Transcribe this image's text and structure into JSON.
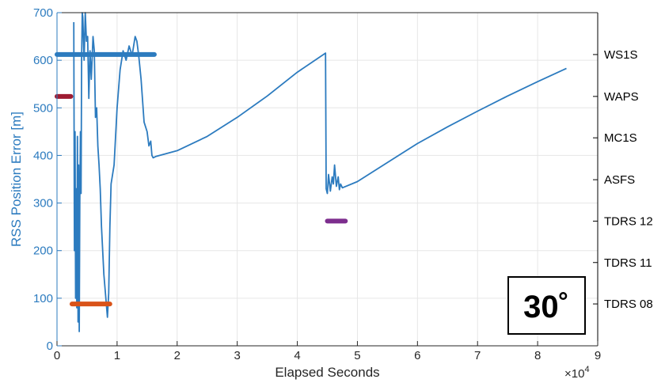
{
  "chart_data": {
    "type": "line",
    "xlabel": "Elapsed Seconds",
    "ylabel": "RSS Position Error [m]",
    "x_multiplier_label": "×10",
    "x_multiplier_exp": "4",
    "xlim": [
      0,
      9
    ],
    "ylim": [
      0,
      700
    ],
    "xticks": [
      "0",
      "1",
      "2",
      "3",
      "4",
      "5",
      "6",
      "7",
      "8",
      "9"
    ],
    "yticks": [
      "0",
      "100",
      "200",
      "300",
      "400",
      "500",
      "600",
      "700"
    ],
    "grid": true,
    "colors": {
      "error": "#2c7bbf",
      "axis_left": "#2c7bbf",
      "axis_right": "#000000",
      "grid": "#e6e6e6",
      "WS1S": "#2c7bbf",
      "WAPS": "#9e1b32",
      "TDRS 12": "#7d2e8e",
      "TDRS 08": "#d95319"
    },
    "right_axis": {
      "labels": [
        "WS1S",
        "WAPS",
        "MC1S",
        "ASFS",
        "TDRS 12",
        "TDRS 11",
        "TDRS 08"
      ],
      "y_positions": [
        612,
        524,
        437,
        349,
        262,
        175,
        88
      ]
    },
    "series": [
      {
        "x": [
          0.28,
          0.29,
          0.3,
          0.31,
          0.32,
          0.33,
          0.34,
          0.35,
          0.36,
          0.37,
          0.38,
          0.39,
          0.4,
          0.41,
          0.42,
          0.43,
          0.45,
          0.47,
          0.49,
          0.51,
          0.53,
          0.55,
          0.57,
          0.6,
          0.62,
          0.64,
          0.66,
          0.68,
          0.7,
          0.72,
          0.74,
          0.76,
          0.78,
          0.8,
          0.82,
          0.84,
          0.86,
          0.88,
          0.9,
          0.95,
          1.0,
          1.05,
          1.1,
          1.15,
          1.2,
          1.25,
          1.3,
          1.33,
          1.36,
          1.4,
          1.45,
          1.5,
          1.53,
          1.56,
          1.58,
          1.6,
          1.65,
          2.0,
          2.5,
          3.0,
          3.5,
          4.0,
          4.47,
          4.48,
          4.5,
          4.52,
          4.55,
          4.58,
          4.6,
          4.62,
          4.65,
          4.68,
          4.7,
          4.72,
          4.75,
          5.0,
          5.5,
          6.0,
          6.5,
          7.0,
          7.5,
          8.0,
          8.48
        ],
        "y": [
          680,
          200,
          450,
          100,
          330,
          80,
          440,
          50,
          380,
          30,
          300,
          450,
          320,
          600,
          700,
          690,
          600,
          700,
          640,
          650,
          520,
          620,
          560,
          650,
          620,
          480,
          500,
          420,
          380,
          330,
          250,
          200,
          150,
          120,
          90,
          60,
          110,
          250,
          340,
          380,
          500,
          580,
          620,
          600,
          630,
          610,
          650,
          640,
          610,
          560,
          470,
          450,
          420,
          430,
          400,
          395,
          398,
          410,
          440,
          480,
          525,
          575,
          615,
          330,
          320,
          360,
          325,
          355,
          340,
          380,
          335,
          355,
          328,
          340,
          332,
          345,
          385,
          425,
          460,
          493,
          525,
          555,
          583
        ]
      }
    ],
    "intervals": [
      {
        "name": "WS1S",
        "x_start": 0.0,
        "x_end": 1.62,
        "level": 612
      },
      {
        "name": "WAPS",
        "x_start": 0.0,
        "x_end": 0.23,
        "level": 524
      },
      {
        "name": "TDRS 12",
        "x_start": 4.5,
        "x_end": 4.8,
        "level": 262
      },
      {
        "name": "TDRS 08",
        "x_start": 0.25,
        "x_end": 0.88,
        "level": 88
      }
    ],
    "annotation": "30˚"
  }
}
